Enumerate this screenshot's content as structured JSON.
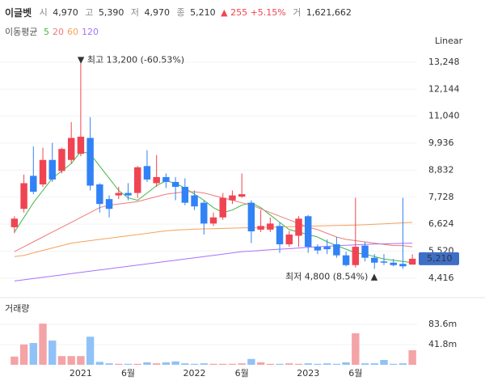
{
  "header": {
    "name": "이글벳",
    "fields": [
      {
        "label": "시",
        "value": "4,970"
      },
      {
        "label": "고",
        "value": "5,390"
      },
      {
        "label": "저",
        "value": "4,970"
      },
      {
        "label": "종",
        "value": "5,210"
      }
    ],
    "change": "▲ 255 +5.15%",
    "volume_label": "거",
    "volume": "1,621,662"
  },
  "chart_data": [
    {
      "type": "candlestick",
      "legend_title": "이동평균",
      "scale_label": "Linear",
      "open": [
        6500,
        7250,
        8600,
        8250,
        9250,
        8800,
        9250,
        9500,
        10150,
        8250,
        7650,
        7800,
        7900,
        7900,
        9000,
        8300,
        8550,
        8350,
        8150,
        7800,
        7500,
        6650,
        6900,
        7600,
        7750,
        7500,
        6400,
        6400,
        6550,
        5800,
        6150,
        6950,
        5700,
        5700,
        5800,
        5350,
        4950,
        5750,
        5250,
        5100,
        5050,
        5000,
        4970
      ],
      "high": [
        6950,
        8650,
        9800,
        9750,
        9950,
        9750,
        10800,
        13200,
        11000,
        8300,
        7800,
        8150,
        8300,
        9000,
        9650,
        9450,
        8700,
        8550,
        8500,
        8000,
        7600,
        7100,
        7900,
        8000,
        8700,
        7600,
        7200,
        6900,
        6700,
        6350,
        6950,
        7000,
        5800,
        6000,
        6100,
        5500,
        7700,
        5900,
        5400,
        5400,
        5200,
        7700,
        5390
      ],
      "low": [
        6250,
        7100,
        7850,
        8150,
        8350,
        8700,
        9100,
        9400,
        8000,
        7100,
        6900,
        7650,
        7600,
        7700,
        8350,
        8150,
        8100,
        7600,
        7400,
        7200,
        6200,
        6550,
        6800,
        7450,
        7700,
        5850,
        6300,
        6300,
        5450,
        5700,
        5700,
        5450,
        5400,
        5400,
        5250,
        4900,
        4850,
        5100,
        4800,
        4950,
        4900,
        4800,
        4970
      ],
      "close": [
        6850,
        8300,
        7950,
        9250,
        8450,
        9700,
        10150,
        10200,
        8200,
        7450,
        7250,
        7900,
        7800,
        8950,
        8450,
        8550,
        8350,
        8150,
        7500,
        7350,
        6650,
        6900,
        7700,
        7800,
        7850,
        6330,
        6550,
        6650,
        5800,
        6200,
        6850,
        5700,
        5550,
        5600,
        5350,
        4950,
        5700,
        5250,
        5050,
        5050,
        4950,
        4900,
        5210
      ],
      "up_color": "#f04452",
      "down_color": "#3182f6",
      "series": [
        {
          "name": "5",
          "color": "#43b649",
          "values": [
            6300,
            6900,
            7500,
            8000,
            8500,
            8800,
            9100,
            9600,
            9500,
            9000,
            8500,
            8000,
            7700,
            7600,
            7900,
            8200,
            8400,
            8300,
            8100,
            7850,
            7600,
            7300,
            7100,
            7200,
            7400,
            7500,
            7300,
            7000,
            6700,
            6400,
            6300,
            6200,
            6100,
            5900,
            5750,
            5600,
            5450,
            5400,
            5300,
            5200,
            5150,
            5100,
            5050
          ]
        },
        {
          "name": "20",
          "color": "#f07a7a",
          "values": [
            5500,
            5700,
            5900,
            6100,
            6300,
            6500,
            6700,
            6900,
            7100,
            7300,
            7400,
            7450,
            7500,
            7550,
            7650,
            7750,
            7850,
            7900,
            7950,
            7950,
            7900,
            7800,
            7700,
            7600,
            7500,
            7400,
            7250,
            7100,
            6950,
            6800,
            6650,
            6500,
            6400,
            6250,
            6100,
            6000,
            5950,
            5900,
            5850,
            5800,
            5750,
            5750,
            5700
          ]
        },
        {
          "name": "60",
          "color": "#f3a35b",
          "values": [
            5300,
            5350,
            5450,
            5550,
            5650,
            5750,
            5850,
            5900,
            5950,
            6000,
            6050,
            6100,
            6150,
            6200,
            6250,
            6300,
            6350,
            6380,
            6400,
            6420,
            6430,
            6440,
            6450,
            6460,
            6470,
            6480,
            6490,
            6500,
            6510,
            6520,
            6530,
            6540,
            6550,
            6560,
            6570,
            6580,
            6590,
            6600,
            6620,
            6640,
            6660,
            6680,
            6700
          ]
        },
        {
          "name": "120",
          "color": "#a970ff",
          "values": [
            4300,
            4350,
            4400,
            4450,
            4500,
            4550,
            4600,
            4650,
            4700,
            4750,
            4800,
            4850,
            4900,
            4950,
            5000,
            5050,
            5100,
            5150,
            5200,
            5250,
            5300,
            5350,
            5400,
            5450,
            5500,
            5520,
            5550,
            5580,
            5600,
            5620,
            5650,
            5680,
            5700,
            5720,
            5740,
            5760,
            5780,
            5800,
            5810,
            5820,
            5830,
            5840,
            5850
          ]
        }
      ],
      "ylim": [
        3950,
        13740
      ],
      "yticks": [
        {
          "value": 4416,
          "label": "4,416"
        },
        {
          "value": 5520,
          "label": "5,520"
        },
        {
          "value": 6624,
          "label": "6,624"
        },
        {
          "value": 7728,
          "label": "7,728"
        },
        {
          "value": 8832,
          "label": "8,832"
        },
        {
          "value": 9936,
          "label": "9,936"
        },
        {
          "value": 11040,
          "label": "11,040"
        },
        {
          "value": 12144,
          "label": "12,144"
        },
        {
          "value": 13248,
          "label": "13,248"
        }
      ],
      "annotations": [
        "▼ 최고 13,200 (-60.53%)",
        "최저 4,800 (8.54%) ▲"
      ]
    },
    {
      "type": "bar",
      "title": "거래량",
      "categories": [
        null,
        null,
        null,
        null,
        null,
        null,
        null,
        "2021",
        null,
        null,
        null,
        null,
        "6월",
        null,
        null,
        null,
        null,
        null,
        null,
        "2022",
        null,
        null,
        null,
        null,
        "6월",
        null,
        null,
        null,
        null,
        null,
        null,
        "2023",
        null,
        null,
        null,
        null,
        "6월",
        null,
        null,
        null,
        null,
        null,
        null
      ],
      "values": [
        17,
        42,
        45,
        85,
        50,
        18,
        18,
        18,
        58,
        6,
        3,
        2,
        2,
        2,
        5,
        3,
        5,
        7,
        3,
        2,
        3,
        2,
        2,
        2,
        3,
        12,
        5,
        2,
        2,
        3,
        2,
        3,
        2,
        3,
        2,
        5,
        65,
        3,
        3,
        10,
        2,
        3,
        30
      ],
      "up_color": "#f4a3a6",
      "down_color": "#90c2f7",
      "ylim": [
        0,
        127
      ],
      "yticks": [
        {
          "value": 41.8,
          "label": "41.8m"
        },
        {
          "value": 83.6,
          "label": "83.6m"
        }
      ]
    }
  ]
}
